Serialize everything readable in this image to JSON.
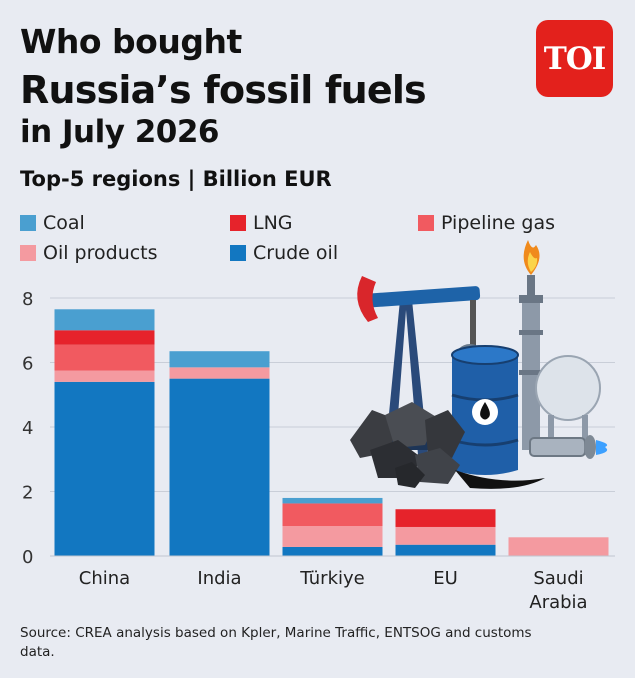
{
  "header": {
    "title_line1": "Who bought",
    "title_line2": "Russia’s fossil fuels",
    "title_line3": "in July 2026",
    "subtitle": "Top-5 regions | Billion EUR",
    "logo_text": "TOI"
  },
  "legend": [
    {
      "label": "Coal",
      "color": "#4a9fd0"
    },
    {
      "label": "LNG",
      "color": "#e6232b"
    },
    {
      "label": "Pipeline gas",
      "color": "#f15a60"
    },
    {
      "label": "Oil products",
      "color": "#f49aa0"
    },
    {
      "label": "Crude oil",
      "color": "#1277c1"
    }
  ],
  "chart_data": {
    "type": "bar",
    "stacked": true,
    "categories": [
      "China",
      "India",
      "Türkiye",
      "EU",
      "Saudi\nArabia"
    ],
    "series": [
      {
        "name": "Crude oil",
        "color": "#1277c1",
        "values": [
          5.4,
          5.5,
          0.28,
          0.35,
          0
        ]
      },
      {
        "name": "Oil products",
        "color": "#f49aa0",
        "values": [
          0.35,
          0.35,
          0.65,
          0.55,
          0.58
        ]
      },
      {
        "name": "Pipeline gas",
        "color": "#f15a60",
        "values": [
          0.8,
          0,
          0.7,
          0,
          0
        ]
      },
      {
        "name": "LNG",
        "color": "#e6232b",
        "values": [
          0.45,
          0,
          0,
          0.55,
          0
        ]
      },
      {
        "name": "Coal",
        "color": "#4a9fd0",
        "values": [
          0.65,
          0.5,
          0.17,
          0,
          0
        ]
      }
    ],
    "yticks": [
      0,
      2,
      4,
      6,
      8
    ],
    "ylim": [
      0,
      8
    ],
    "grid": true,
    "legend_position": "top",
    "illustration": "fossil-fuels-illustration"
  },
  "footer": {
    "source": "Source: CREA analysis based on Kpler, Marine Traffic, ENTSOG and customs data."
  }
}
